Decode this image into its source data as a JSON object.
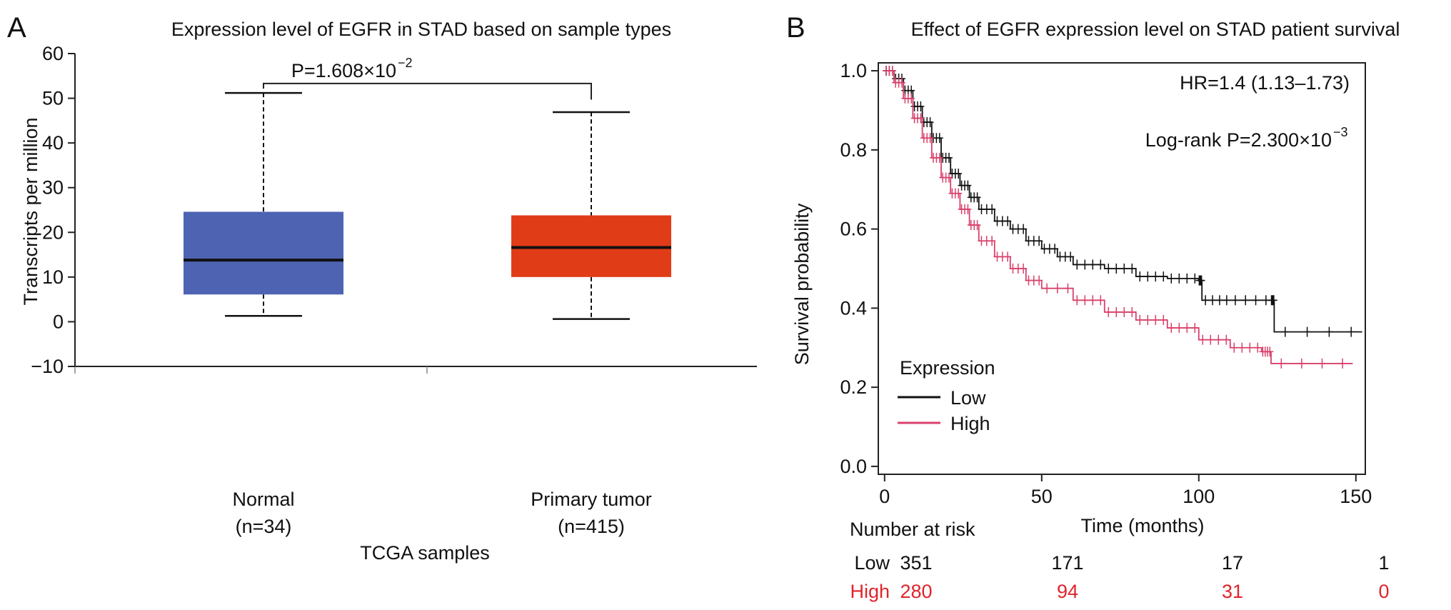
{
  "colors": {
    "normal_box": "#4e63b1",
    "tumor_box": "#e13c18",
    "low_curve": "#111111",
    "high_curve": "#d8416b",
    "high_text": "#e0242b",
    "axis": "#222222"
  },
  "panelA": {
    "letter": "A",
    "title": "Expression level of EGFR in STAD based on sample types",
    "ylabel": "Transcripts per million",
    "xlabel": "TCGA samples",
    "pvalue_base": "P=1.608×10",
    "pvalue_exp": "−2",
    "groups": [
      {
        "name": "Normal",
        "n": "(n=34)"
      },
      {
        "name": "Primary tumor",
        "n": "(n=415)"
      }
    ]
  },
  "panelB": {
    "letter": "B",
    "title": "Effect of EGFR expression level on STAD patient survival",
    "ylabel": "Survival probability",
    "xlabel": "Time (months)",
    "hr": "HR=1.4 (1.13–1.73)",
    "logrank_base": "Log-rank P=2.300×10",
    "logrank_exp": "−3",
    "legend_title": "Expression",
    "legend_low": "Low",
    "legend_high": "High",
    "risk_title": "Number at risk",
    "risk_low_label": "Low",
    "risk_high_label": "High",
    "risk_low": [
      "351",
      "171",
      "17",
      "1"
    ],
    "risk_high": [
      "280",
      "94",
      "31",
      "0"
    ]
  },
  "chart_data": [
    {
      "type": "box",
      "title": "Expression level of EGFR in STAD based on sample types",
      "xlabel": "TCGA samples",
      "ylabel": "Transcripts per million",
      "ylim": [
        -10,
        60
      ],
      "yticks": [
        -10,
        0,
        10,
        20,
        30,
        40,
        50,
        60
      ],
      "categories": [
        "Normal (n=34)",
        "Primary tumor (n=415)"
      ],
      "boxes": [
        {
          "name": "Normal",
          "n": 34,
          "min": 1.3,
          "q1": 6.1,
          "median": 13.8,
          "q3": 24.6,
          "max": 51.2
        },
        {
          "name": "Primary tumor",
          "n": 415,
          "min": 0.6,
          "q1": 10.0,
          "median": 16.6,
          "q3": 23.8,
          "max": 46.9
        }
      ],
      "annotation": "P=1.608×10−2",
      "grid": false
    },
    {
      "type": "line",
      "title": "Effect of EGFR expression level on STAD patient survival",
      "xlabel": "Time (months)",
      "ylabel": "Survival probability",
      "xlim": [
        -2,
        153
      ],
      "ylim": [
        -0.02,
        1.02
      ],
      "xticks": [
        0,
        50,
        100,
        150
      ],
      "yticks": [
        0.0,
        0.2,
        0.4,
        0.6,
        0.8,
        1.0
      ],
      "legend_position": "bottom-left",
      "annotations": [
        "HR=1.4 (1.13–1.73)",
        "Log-rank P=2.300×10−3"
      ],
      "series": [
        {
          "name": "Low",
          "x": [
            0,
            3,
            6,
            9,
            12,
            15,
            18,
            21,
            24,
            27,
            30,
            35,
            40,
            45,
            50,
            55,
            60,
            70,
            80,
            90,
            100,
            101,
            110,
            123,
            124,
            152
          ],
          "y": [
            1.0,
            0.98,
            0.95,
            0.91,
            0.87,
            0.83,
            0.78,
            0.74,
            0.71,
            0.68,
            0.65,
            0.62,
            0.6,
            0.57,
            0.55,
            0.53,
            0.51,
            0.5,
            0.48,
            0.475,
            0.47,
            0.42,
            0.42,
            0.42,
            0.34,
            0.34
          ]
        },
        {
          "name": "High",
          "x": [
            0,
            3,
            6,
            9,
            12,
            15,
            18,
            21,
            24,
            27,
            30,
            35,
            40,
            45,
            50,
            60,
            70,
            80,
            90,
            100,
            110,
            120,
            123,
            149
          ],
          "y": [
            1.0,
            0.97,
            0.93,
            0.88,
            0.83,
            0.78,
            0.73,
            0.69,
            0.65,
            0.61,
            0.57,
            0.53,
            0.5,
            0.47,
            0.45,
            0.42,
            0.39,
            0.37,
            0.35,
            0.32,
            0.3,
            0.29,
            0.26,
            0.26
          ]
        }
      ],
      "risk_table": {
        "times": [
          0,
          50,
          100,
          150
        ],
        "Low": [
          351,
          171,
          17,
          1
        ],
        "High": [
          280,
          94,
          31,
          0
        ]
      }
    }
  ]
}
